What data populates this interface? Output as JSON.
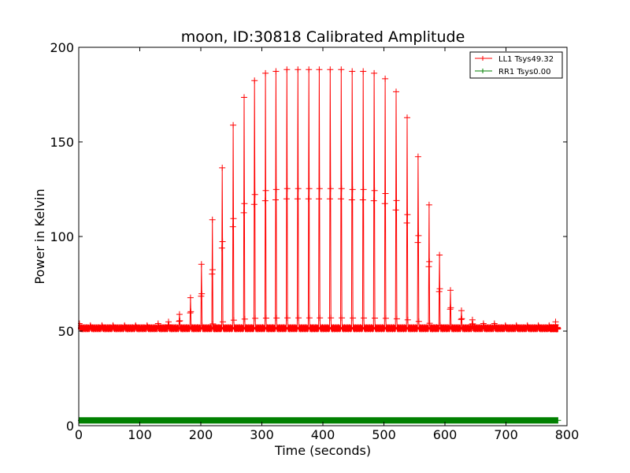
{
  "chart_data": {
    "type": "line",
    "title": "moon, ID:30818 Calibrated Amplitude",
    "xlabel": "Time (seconds)",
    "ylabel": "Power in Kelvin",
    "xlim": [
      0,
      800
    ],
    "ylim": [
      0,
      200
    ],
    "xticks": [
      0,
      100,
      200,
      300,
      400,
      500,
      600,
      700,
      800
    ],
    "yticks": [
      0,
      50,
      100,
      150,
      200
    ],
    "grid": false,
    "legend_position": "top-right",
    "scan": {
      "t_start": 0,
      "t_end": 785,
      "baseline": 51.5,
      "baseline_ripple": 0.8,
      "samples_per_sweep": 34,
      "sweeps": [
        {
          "t": 0,
          "peak": 54
        },
        {
          "t": 18,
          "peak": 53
        },
        {
          "t": 37,
          "peak": 53
        },
        {
          "t": 55,
          "peak": 53
        },
        {
          "t": 74,
          "peak": 53
        },
        {
          "t": 92,
          "peak": 53
        },
        {
          "t": 111,
          "peak": 53
        },
        {
          "t": 129,
          "peak": 54
        },
        {
          "t": 146,
          "peak": 55
        },
        {
          "t": 164,
          "peak": 59
        },
        {
          "t": 182,
          "peak": 68
        },
        {
          "t": 200,
          "peak": 86
        },
        {
          "t": 218,
          "peak": 110
        },
        {
          "t": 234,
          "peak": 138
        },
        {
          "t": 252,
          "peak": 161
        },
        {
          "t": 270,
          "peak": 176
        },
        {
          "t": 287,
          "peak": 185
        },
        {
          "t": 305,
          "peak": 189
        },
        {
          "t": 322,
          "peak": 190
        },
        {
          "t": 340,
          "peak": 191
        },
        {
          "t": 358,
          "peak": 191
        },
        {
          "t": 376,
          "peak": 191
        },
        {
          "t": 393,
          "peak": 191
        },
        {
          "t": 411,
          "peak": 191
        },
        {
          "t": 429,
          "peak": 191
        },
        {
          "t": 447,
          "peak": 190
        },
        {
          "t": 465,
          "peak": 190
        },
        {
          "t": 483,
          "peak": 189
        },
        {
          "t": 501,
          "peak": 186
        },
        {
          "t": 519,
          "peak": 179
        },
        {
          "t": 537,
          "peak": 165
        },
        {
          "t": 555,
          "peak": 144
        },
        {
          "t": 573,
          "peak": 118
        },
        {
          "t": 590,
          "peak": 91
        },
        {
          "t": 608,
          "peak": 72
        },
        {
          "t": 626,
          "peak": 61
        },
        {
          "t": 644,
          "peak": 56
        },
        {
          "t": 662,
          "peak": 54
        },
        {
          "t": 680,
          "peak": 54
        },
        {
          "t": 698,
          "peak": 53
        },
        {
          "t": 716,
          "peak": 53
        },
        {
          "t": 734,
          "peak": 53
        },
        {
          "t": 752,
          "peak": 53
        },
        {
          "t": 770,
          "peak": 53
        },
        {
          "t": 781,
          "peak": 55
        }
      ]
    },
    "series": [
      {
        "name": "LL1 Tsys49.32",
        "color": "#ff0000",
        "marker": "+",
        "mode": "scan"
      },
      {
        "name": "RR1 Tsys0.00",
        "color": "#008000",
        "marker": "+",
        "constant": 2.8
      }
    ]
  }
}
